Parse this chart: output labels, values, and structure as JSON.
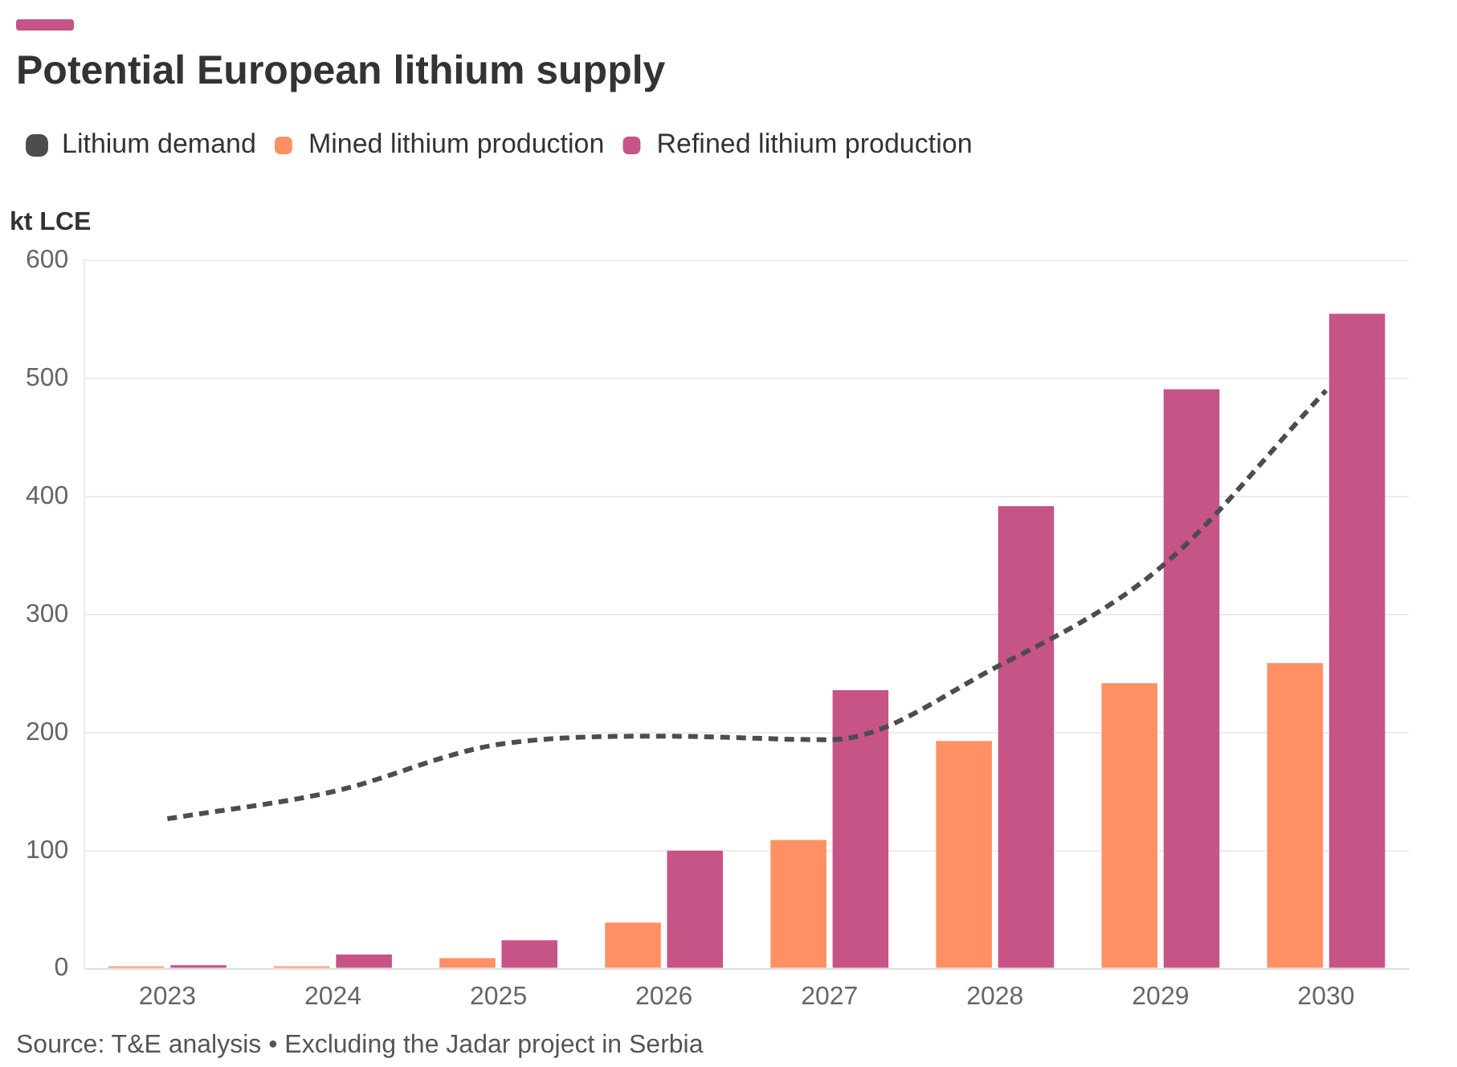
{
  "chart_data": {
    "type": "bar",
    "title": "Potential European lithium supply",
    "ylabel": "kt LCE",
    "categories": [
      "2023",
      "2024",
      "2025",
      "2026",
      "2027",
      "2028",
      "2029",
      "2030"
    ],
    "series": [
      {
        "name": "Lithium demand",
        "type": "line",
        "color": "#4d4d4d",
        "line_style": "dashed",
        "marker": "none",
        "values": [
          127,
          150,
          190,
          197,
          194,
          255,
          340,
          490
        ]
      },
      {
        "name": "Mined lithium production",
        "color": "#ff9064",
        "values": [
          2,
          2,
          9,
          39,
          109,
          193,
          242,
          259
        ]
      },
      {
        "name": "Refined lithium production",
        "color": "#c75487",
        "values": [
          3,
          12,
          24,
          100,
          236,
          392,
          491,
          555
        ]
      }
    ],
    "ylim": [
      0,
      600
    ],
    "yticks": [
      0,
      100,
      200,
      300,
      400,
      500,
      600
    ],
    "grid": "y",
    "legend": "top left",
    "annotations": [
      "Source: T&E analysis • Excluding the Jadar project in Serbia"
    ]
  }
}
